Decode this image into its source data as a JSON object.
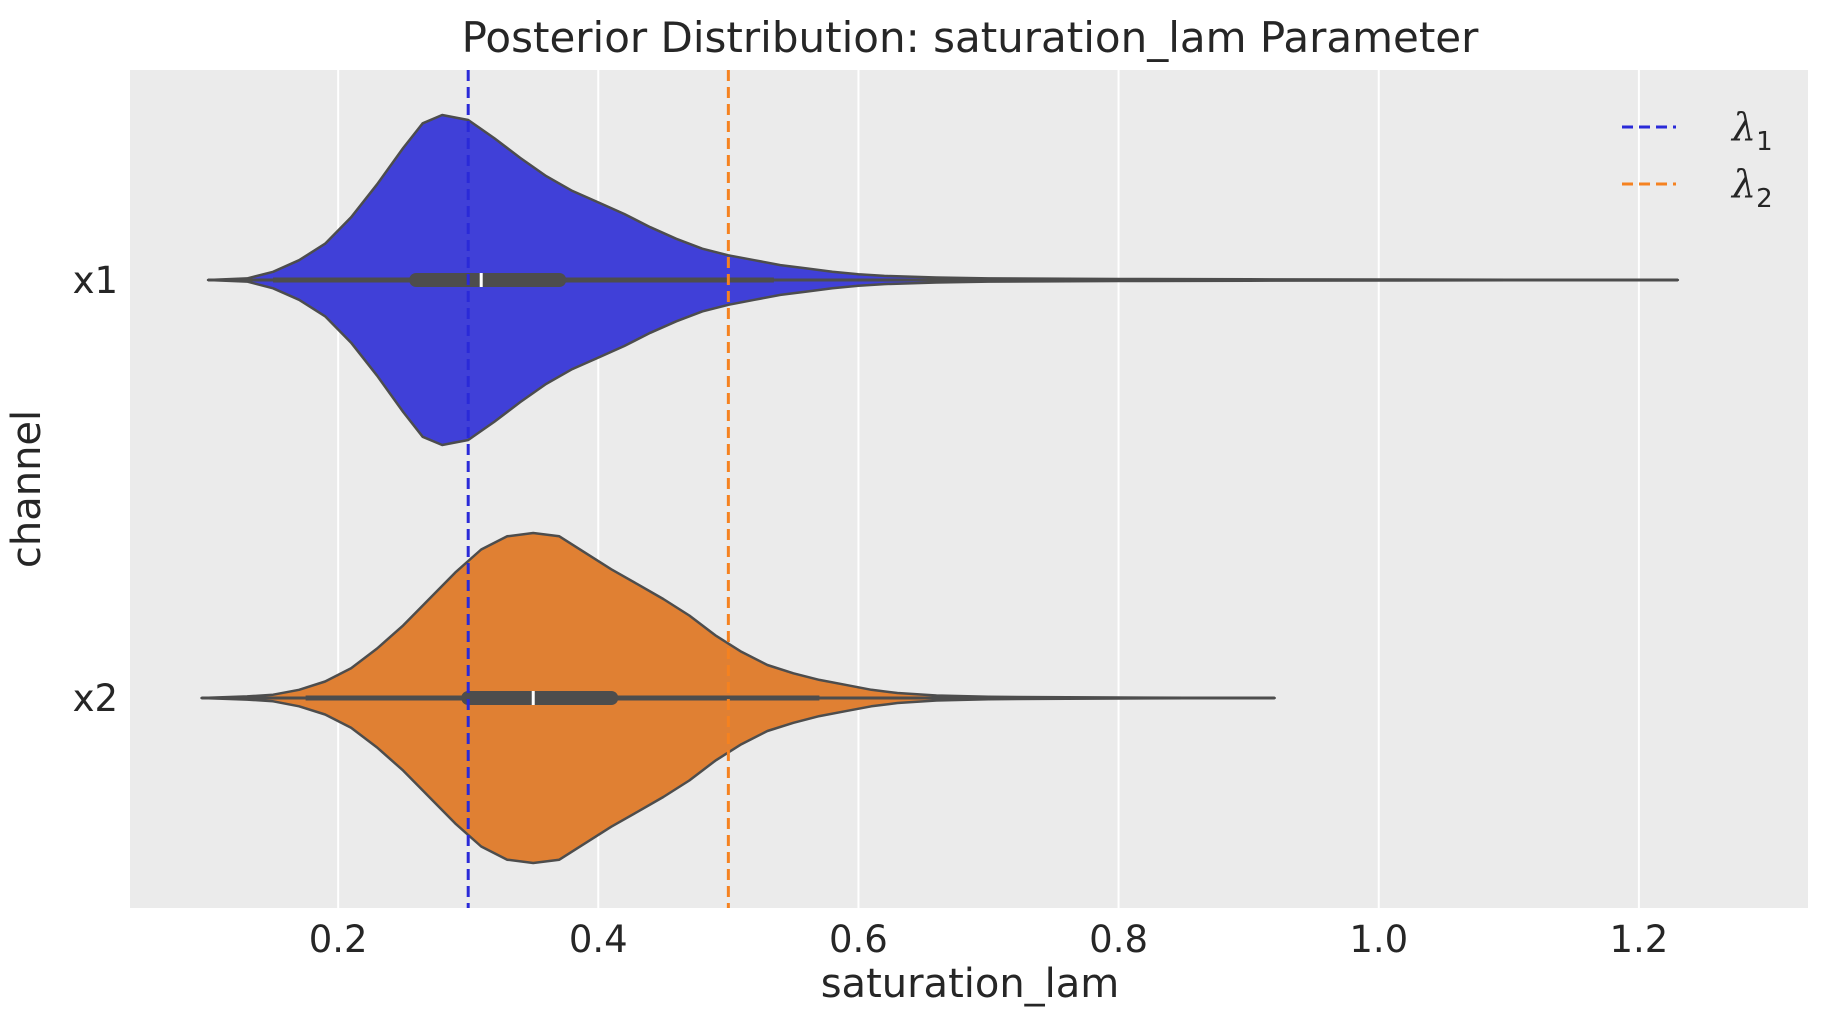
{
  "chart_data": {
    "type": "violin",
    "title": "Posterior Distribution: saturation_lam Parameter",
    "xlabel": "saturation_lam",
    "ylabel": "channel",
    "xlim": [
      0.04,
      1.33
    ],
    "xticks": [
      0.2,
      0.4,
      0.6,
      0.8,
      1.0,
      1.2
    ],
    "xtick_labels": [
      "0.2",
      "0.4",
      "0.6",
      "0.8",
      "1.0",
      "1.2"
    ],
    "categories": [
      "x1",
      "x2"
    ],
    "grid": true,
    "legend_position": "upper-right",
    "series": [
      {
        "category": "x1",
        "color": "#4040d8",
        "min": 0.1,
        "max": 1.23,
        "q1": 0.26,
        "median": 0.31,
        "q3": 0.37,
        "whisker_low": 0.15,
        "whisker_high": 0.535,
        "density": [
          [
            0.1,
            0.0
          ],
          [
            0.13,
            0.01
          ],
          [
            0.15,
            0.05
          ],
          [
            0.17,
            0.12
          ],
          [
            0.19,
            0.22
          ],
          [
            0.21,
            0.38
          ],
          [
            0.23,
            0.58
          ],
          [
            0.25,
            0.8
          ],
          [
            0.265,
            0.95
          ],
          [
            0.28,
            1.0
          ],
          [
            0.3,
            0.97
          ],
          [
            0.32,
            0.86
          ],
          [
            0.34,
            0.74
          ],
          [
            0.36,
            0.63
          ],
          [
            0.38,
            0.54
          ],
          [
            0.4,
            0.47
          ],
          [
            0.42,
            0.4
          ],
          [
            0.44,
            0.32
          ],
          [
            0.46,
            0.25
          ],
          [
            0.48,
            0.19
          ],
          [
            0.5,
            0.15
          ],
          [
            0.52,
            0.12
          ],
          [
            0.54,
            0.09
          ],
          [
            0.56,
            0.07
          ],
          [
            0.58,
            0.05
          ],
          [
            0.6,
            0.035
          ],
          [
            0.62,
            0.025
          ],
          [
            0.66,
            0.015
          ],
          [
            0.7,
            0.01
          ],
          [
            0.8,
            0.006
          ],
          [
            0.9,
            0.004
          ],
          [
            1.0,
            0.003
          ],
          [
            1.1,
            0.002
          ],
          [
            1.23,
            0.0
          ]
        ]
      },
      {
        "category": "x2",
        "color": "#e08033",
        "min": 0.095,
        "max": 0.92,
        "q1": 0.3,
        "median": 0.35,
        "q3": 0.41,
        "whisker_low": 0.175,
        "whisker_high": 0.57,
        "density": [
          [
            0.095,
            0.0
          ],
          [
            0.13,
            0.01
          ],
          [
            0.15,
            0.02
          ],
          [
            0.17,
            0.05
          ],
          [
            0.19,
            0.1
          ],
          [
            0.21,
            0.18
          ],
          [
            0.23,
            0.3
          ],
          [
            0.25,
            0.44
          ],
          [
            0.27,
            0.6
          ],
          [
            0.29,
            0.76
          ],
          [
            0.31,
            0.9
          ],
          [
            0.33,
            0.98
          ],
          [
            0.35,
            1.0
          ],
          [
            0.37,
            0.98
          ],
          [
            0.39,
            0.88
          ],
          [
            0.41,
            0.78
          ],
          [
            0.43,
            0.69
          ],
          [
            0.45,
            0.6
          ],
          [
            0.47,
            0.5
          ],
          [
            0.49,
            0.38
          ],
          [
            0.51,
            0.28
          ],
          [
            0.53,
            0.2
          ],
          [
            0.55,
            0.15
          ],
          [
            0.57,
            0.11
          ],
          [
            0.59,
            0.08
          ],
          [
            0.61,
            0.05
          ],
          [
            0.63,
            0.03
          ],
          [
            0.66,
            0.015
          ],
          [
            0.7,
            0.007
          ],
          [
            0.8,
            0.003
          ],
          [
            0.92,
            0.0
          ]
        ]
      }
    ],
    "reference_lines": [
      {
        "value": 0.3,
        "color": "#2a2ad8",
        "legend": "λ",
        "legend_sub": "1"
      },
      {
        "value": 0.5,
        "color": "#f58220",
        "legend": "λ",
        "legend_sub": "2"
      }
    ]
  }
}
